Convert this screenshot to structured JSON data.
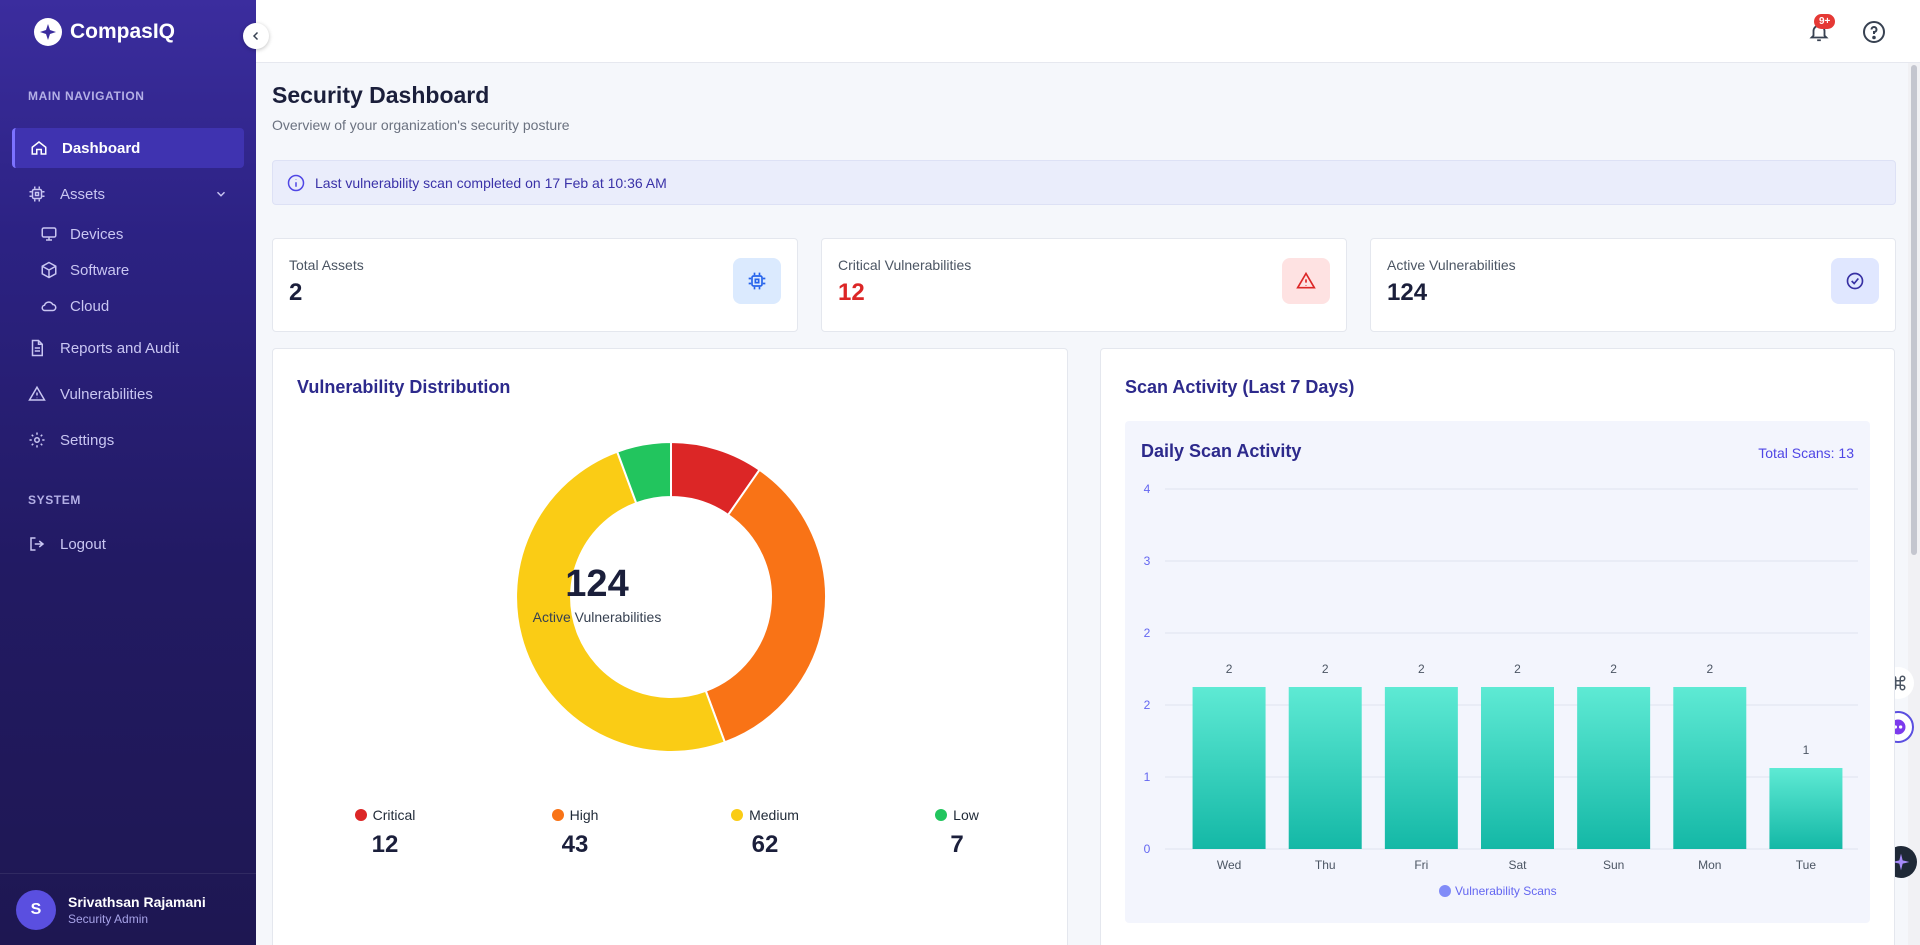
{
  "app": {
    "name": "CompasIQ"
  },
  "sidebar": {
    "main_section": "MAIN NAVIGATION",
    "system_section": "SYSTEM",
    "items": {
      "dashboard": "Dashboard",
      "assets": "Assets",
      "devices": "Devices",
      "software": "Software",
      "cloud": "Cloud",
      "reports": "Reports and Audit",
      "vulnerabilities": "Vulnerabilities",
      "settings": "Settings",
      "logout": "Logout"
    },
    "user": {
      "initial": "S",
      "name": "Srivathsan Rajamani",
      "role": "Security Admin"
    }
  },
  "topbar": {
    "notification_badge": "9+"
  },
  "page": {
    "title": "Security Dashboard",
    "subtitle": "Overview of your organization's security posture",
    "info": "Last vulnerability scan completed on 17 Feb at 10:36 AM"
  },
  "stats": [
    {
      "label": "Total Assets",
      "value": "2",
      "color": "#1b1f3b"
    },
    {
      "label": "Critical Vulnerabilities",
      "value": "12",
      "color": "#dc2626"
    },
    {
      "label": "Active Vulnerabilities",
      "value": "124",
      "color": "#1b1f3b"
    }
  ],
  "distribution": {
    "title": "Vulnerability Distribution",
    "center_value": "124",
    "center_label": "Active Vulnerabilities",
    "legend": [
      {
        "name": "Critical",
        "value": "12"
      },
      {
        "name": "High",
        "value": "43"
      },
      {
        "name": "Medium",
        "value": "62"
      },
      {
        "name": "Low",
        "value": "7"
      }
    ]
  },
  "scan": {
    "title": "Scan Activity (Last 7 Days)",
    "inner_title": "Daily Scan Activity",
    "total": "Total Scans: 13"
  },
  "chart_data": [
    {
      "type": "pie",
      "title": "Vulnerability Distribution",
      "categories": [
        "Critical",
        "High",
        "Medium",
        "Low"
      ],
      "values": [
        12,
        43,
        62,
        7
      ],
      "colors": [
        "#dc2626",
        "#f97316",
        "#facc15",
        "#22c55e"
      ]
    },
    {
      "type": "bar",
      "title": "Daily Scan Activity",
      "categories": [
        "Wed",
        "Thu",
        "Fri",
        "Sat",
        "Sun",
        "Mon",
        "Tue"
      ],
      "values": [
        2,
        2,
        2,
        2,
        2,
        2,
        1
      ],
      "y_ticks": [
        "0",
        "1",
        "2",
        "2",
        "3",
        "4"
      ],
      "ylim": [
        0,
        4
      ],
      "legend": "Vulnerability Scans",
      "legend_color": "#818cf8",
      "bar_color": "#2dd4bf"
    }
  ]
}
